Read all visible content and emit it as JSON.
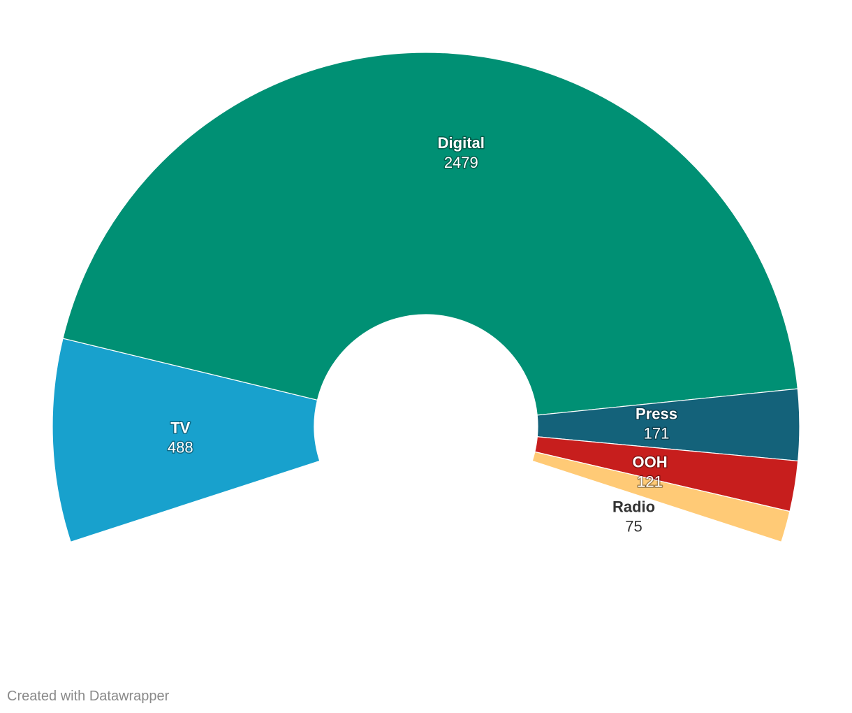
{
  "chart_data": {
    "type": "pie",
    "variant": "semi-donut",
    "categories": [
      "TV",
      "Digital",
      "Press",
      "OOH",
      "Radio"
    ],
    "values": [
      488,
      2479,
      171,
      121,
      75
    ],
    "colors": [
      "#18a1cd",
      "#009074",
      "#14627a",
      "#c71e1d",
      "#ffca76"
    ],
    "label_colors": [
      "#ffffff",
      "#ffffff",
      "#ffffff",
      "#ffffff",
      "#333333"
    ],
    "legend": "none",
    "labels_on_slices": true
  },
  "footer": {
    "credit": "Created with Datawrapper"
  }
}
